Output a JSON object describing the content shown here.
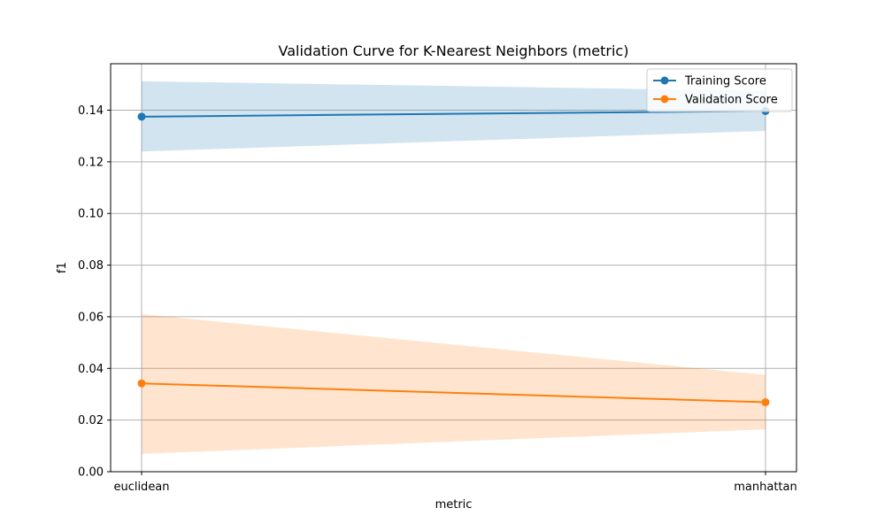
{
  "chart_data": {
    "type": "line",
    "title": "Validation Curve for K-Nearest Neighbors (metric)",
    "xlabel": "metric",
    "ylabel": "f1",
    "categories": [
      "euclidean",
      "manhattan"
    ],
    "ylim": [
      0.0,
      0.158
    ],
    "yticks": [
      0.0,
      0.02,
      0.04,
      0.06,
      0.08,
      0.1,
      0.12,
      0.14
    ],
    "ytick_labels": [
      "0.00",
      "0.02",
      "0.04",
      "0.06",
      "0.08",
      "0.10",
      "0.12",
      "0.14"
    ],
    "grid": true,
    "legend_position": "top-right",
    "series": [
      {
        "name": "Training Score",
        "color": "#1f77b4",
        "band_color": "#1f77b4",
        "values": [
          0.1375,
          0.1397
        ],
        "lower": [
          0.124,
          0.132
        ],
        "upper": [
          0.1512,
          0.1475
        ]
      },
      {
        "name": "Validation Score",
        "color": "#ff7f0e",
        "band_color": "#ff7f0e",
        "values": [
          0.0342,
          0.0269
        ],
        "lower": [
          0.0069,
          0.0164
        ],
        "upper": [
          0.061,
          0.0375
        ]
      }
    ]
  }
}
